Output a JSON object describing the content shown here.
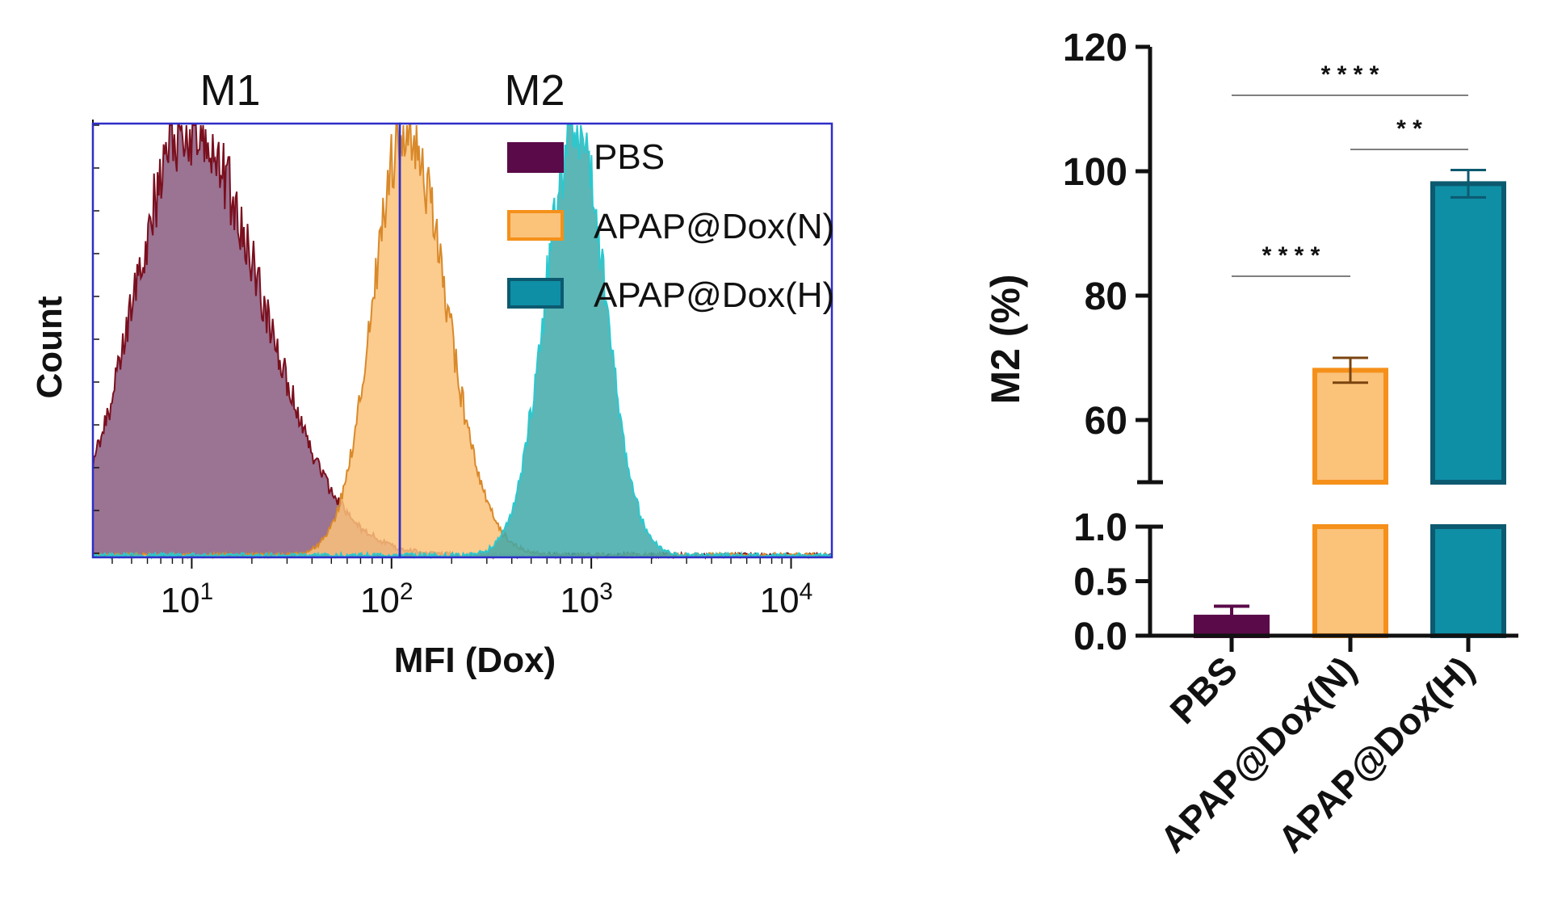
{
  "colors": {
    "pbs": "#5a0a48",
    "pbs_fill": "#8a5a80",
    "pbs_line": "#7a0f1e",
    "apap_n": "#f5901a",
    "apap_n_fill": "#fbc27a",
    "apap_n_line": "#d9892a",
    "apap_h": "#0e8fa6",
    "apap_h_dark": "#0c5a70",
    "apap_h_fill": "#3fa9a9",
    "apap_h_line": "#2bc8cf",
    "gate": "#2e2ec8",
    "axis": "#111111"
  },
  "chart_data": [
    {
      "type": "area",
      "title": "",
      "xlabel": "MFI (Dox)",
      "ylabel": "Count",
      "xscale": "log",
      "xlim": [
        3.2,
        16000
      ],
      "x_tick_labels": [
        {
          "value": 10,
          "base": "10",
          "exp": "1"
        },
        {
          "value": 100,
          "base": "10",
          "exp": "2"
        },
        {
          "value": 1000,
          "base": "10",
          "exp": "3"
        },
        {
          "value": 10000,
          "base": "10",
          "exp": "4"
        }
      ],
      "gates": [
        {
          "name": "M1",
          "from": 3.2,
          "to": 110
        },
        {
          "name": "M2",
          "from": 110,
          "to": 16000
        }
      ],
      "legend": {
        "placement": "top-right",
        "entries": [
          "PBS",
          "APAP@Dox(N)",
          "APAP@Dox(H)"
        ]
      },
      "series": [
        {
          "name": "PBS",
          "peak_log10_mfi": 0.98,
          "spread_left": 0.27,
          "spread_right": 0.37
        },
        {
          "name": "APAP@Dox(N)",
          "peak_log10_mfi": 2.07,
          "spread_left": 0.16,
          "spread_right": 0.2
        },
        {
          "name": "APAP@Dox(H)",
          "peak_log10_mfi": 2.92,
          "spread_left": 0.15,
          "spread_right": 0.15
        }
      ]
    },
    {
      "type": "bar",
      "title": "",
      "xlabel": "",
      "ylabel": "M2 (%)",
      "categories": [
        "PBS",
        "APAP@Dox(N)",
        "APAP@Dox(H)"
      ],
      "values": [
        0.17,
        68,
        98
      ],
      "errors": [
        0.1,
        2.0,
        2.2
      ],
      "axis_break": {
        "lower": [
          0,
          1.0
        ],
        "upper": [
          50,
          120
        ]
      },
      "lower_ticks": [
        "0.0",
        "0.5",
        "1.0"
      ],
      "upper_ticks": [
        "60",
        "80",
        "100",
        "120"
      ],
      "significance": [
        {
          "from": 0,
          "to": 2,
          "label": "* * * *"
        },
        {
          "from": 1,
          "to": 2,
          "label": "* *"
        },
        {
          "from": 0,
          "to": 1,
          "label": "* * * *"
        }
      ]
    }
  ]
}
